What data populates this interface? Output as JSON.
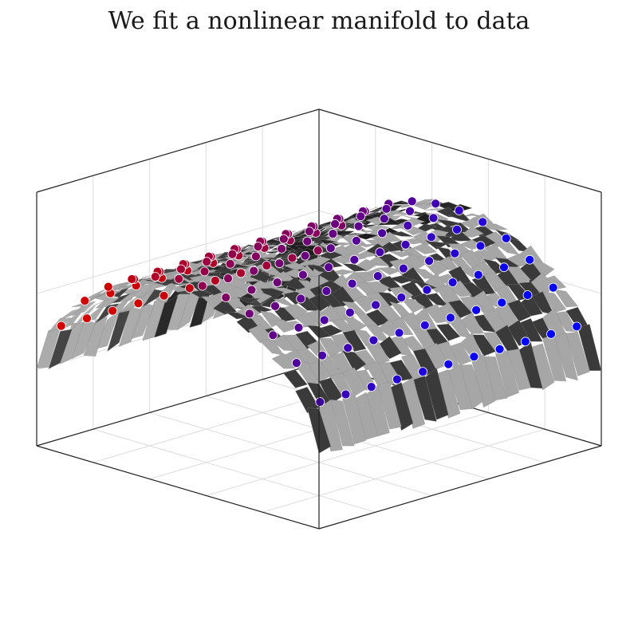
{
  "chart_data": {
    "type": "scatter",
    "title": "We fit a nonlinear manifold to data",
    "xlabel": "",
    "ylabel": "",
    "zlabel": "",
    "axes_3d": true,
    "tick_labels_shown": false,
    "grid": true,
    "surface": {
      "kind": "ridge",
      "fill_color": "#a6a6a6",
      "shadow_color": "#3a3a3a",
      "noisy": true
    },
    "points": {
      "grid_u": 12,
      "grid_v": 11,
      "color_low": "#0000ff",
      "color_high": "#d00000",
      "edge_color": "#ffffff"
    },
    "ylim": [
      0,
      1
    ]
  }
}
